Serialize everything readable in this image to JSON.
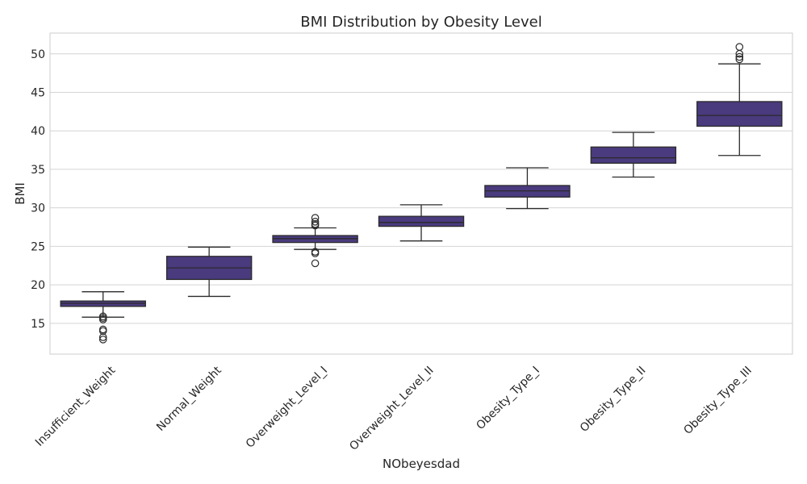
{
  "chart_data": {
    "type": "box",
    "title": "BMI Distribution by Obesity Level",
    "xlabel": "NObeyesdad",
    "ylabel": "BMI",
    "ylim": [
      11,
      52.7
    ],
    "yticks": [
      15,
      20,
      25,
      30,
      35,
      40,
      45,
      50
    ],
    "grid": true,
    "box_color": "#4a3a7e",
    "line_color": "#2b2b2b",
    "categories": [
      "Insufficient_Weight",
      "Normal_Weight",
      "Overweight_Level_I",
      "Overweight_Level_II",
      "Obesity_Type_I",
      "Obesity_Type_II",
      "Obesity_Type_III"
    ],
    "boxes": [
      {
        "category": "Insufficient_Weight",
        "whisker_low": 15.8,
        "q1": 17.2,
        "median": 17.6,
        "q3": 17.9,
        "whisker_high": 19.1,
        "outliers": [
          15.5,
          15.7,
          15.9,
          14.2,
          14.0,
          13.2,
          12.9
        ]
      },
      {
        "category": "Normal_Weight",
        "whisker_low": 18.5,
        "q1": 20.7,
        "median": 22.2,
        "q3": 23.7,
        "whisker_high": 24.9,
        "outliers": []
      },
      {
        "category": "Overweight_Level_I",
        "whisker_low": 24.6,
        "q1": 25.5,
        "median": 26.0,
        "q3": 26.4,
        "whisker_high": 27.4,
        "outliers": [
          28.7,
          28.2,
          27.9,
          27.7,
          24.3,
          24.1,
          22.8
        ]
      },
      {
        "category": "Overweight_Level_II",
        "whisker_low": 25.7,
        "q1": 27.6,
        "median": 28.1,
        "q3": 28.9,
        "whisker_high": 30.4,
        "outliers": []
      },
      {
        "category": "Obesity_Type_I",
        "whisker_low": 29.9,
        "q1": 31.4,
        "median": 32.2,
        "q3": 32.9,
        "whisker_high": 35.2,
        "outliers": []
      },
      {
        "category": "Obesity_Type_II",
        "whisker_low": 34.0,
        "q1": 35.8,
        "median": 36.5,
        "q3": 37.9,
        "whisker_high": 39.8,
        "outliers": []
      },
      {
        "category": "Obesity_Type_III",
        "whisker_low": 36.8,
        "q1": 40.6,
        "median": 42.0,
        "q3": 43.8,
        "whisker_high": 48.7,
        "outliers": [
          50.9,
          50.0,
          49.6,
          49.3
        ]
      }
    ]
  }
}
